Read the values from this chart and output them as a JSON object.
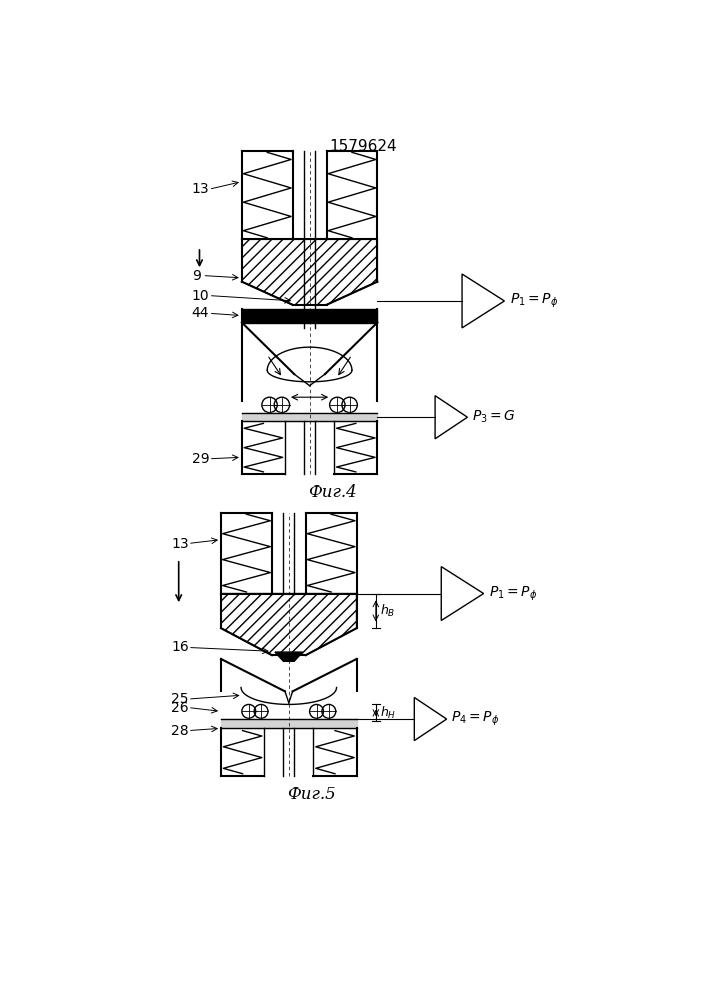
{
  "title": "1579624",
  "fig4_label": "Фиг.4",
  "fig5_label": "Фиг.5",
  "bg_color": "#ffffff"
}
